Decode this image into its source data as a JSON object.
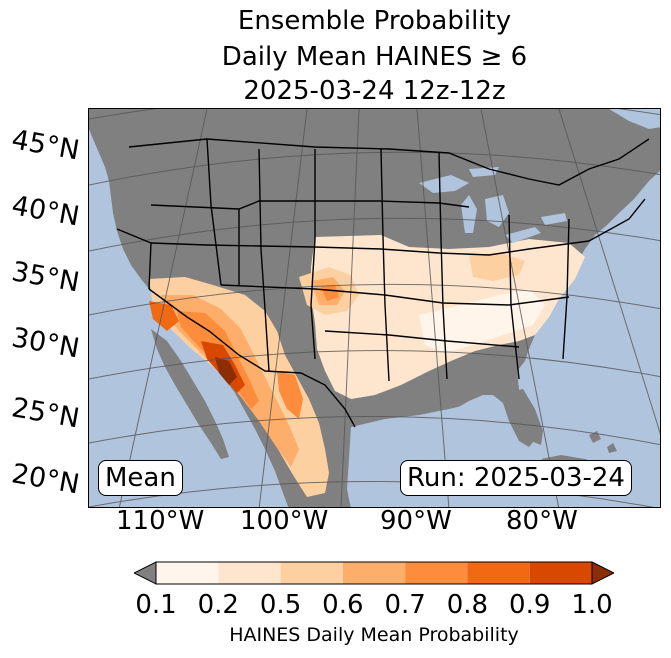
{
  "title": {
    "line1": "Ensemble Probability",
    "line2": "Daily Mean HAINES ≥ 6",
    "line3": "2025-03-24 12z-12z"
  },
  "map": {
    "colors": {
      "ocean": "#b0c4de",
      "land_no_data": "#808080",
      "border": "#000000",
      "graticule": "#555555"
    },
    "latitude_labels": [
      "45°N",
      "40°N",
      "35°N",
      "30°N",
      "25°N",
      "20°N"
    ],
    "longitude_labels": [
      "110°W",
      "100°W",
      "90°W",
      "80°W"
    ],
    "mean_label": "Mean",
    "run_label": "Run: 2025-03-24"
  },
  "colorbar": {
    "ticks": [
      "0.1",
      "0.2",
      "0.5",
      "0.6",
      "0.7",
      "0.8",
      "0.9",
      "1.0"
    ],
    "colors": [
      "#fff5eb",
      "#fee6ce",
      "#fdd0a2",
      "#fdae6b",
      "#fd8d3c",
      "#f16913",
      "#d94801",
      "#8c2d04"
    ],
    "under_color": "#808080",
    "label": "HAINES Daily Mean Probability"
  }
}
